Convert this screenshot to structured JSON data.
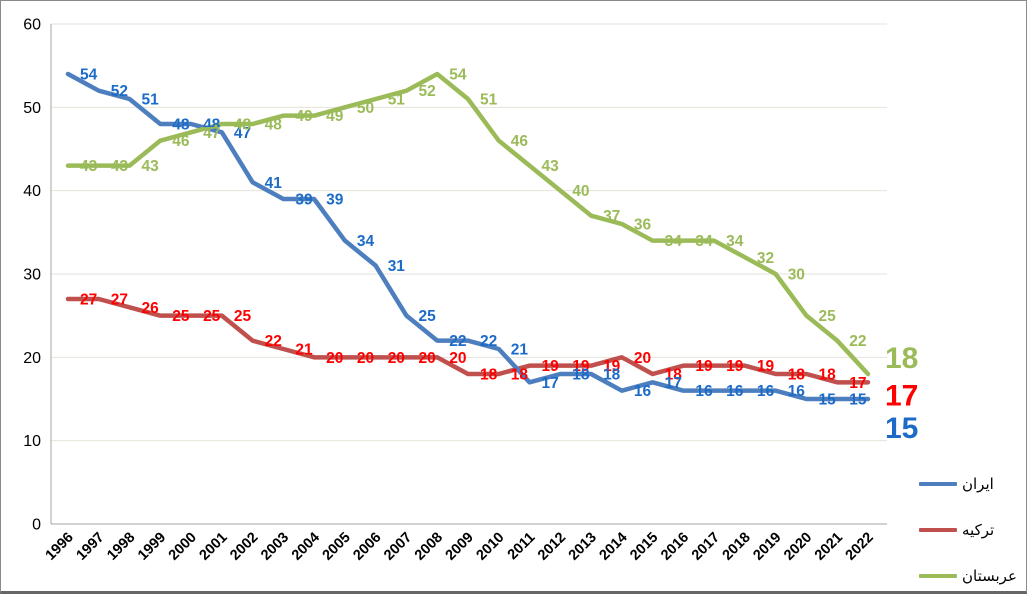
{
  "chart_data": {
    "type": "line",
    "title": "",
    "xlabel": "",
    "ylabel": "",
    "x": [
      1996,
      1997,
      1998,
      1999,
      2000,
      2001,
      2002,
      2003,
      2004,
      2005,
      2006,
      2007,
      2008,
      2009,
      2010,
      2011,
      2012,
      2013,
      2014,
      2015,
      2016,
      2017,
      2018,
      2019,
      2020,
      2021,
      2022
    ],
    "ylim": [
      0,
      60
    ],
    "yticks": [
      0,
      10,
      20,
      30,
      40,
      50,
      60
    ],
    "grid": true,
    "legend_position": "bottom-right",
    "series": [
      {
        "key": "iran",
        "name": "ايران",
        "line_color": "#4D7EBE",
        "label_color": "#1C6BC8",
        "values": [
          54,
          52,
          51,
          48,
          48,
          47,
          41,
          39,
          39,
          34,
          31,
          25,
          22,
          22,
          21,
          17,
          18,
          18,
          16,
          17,
          16,
          16,
          16,
          16,
          15,
          15,
          15
        ],
        "final_value_label": "15"
      },
      {
        "key": "turkiye",
        "name": "تركيه",
        "line_color": "#C0504D",
        "label_color": "#FF0000",
        "values": [
          27,
          27,
          26,
          25,
          25,
          25,
          22,
          21,
          20,
          20,
          20,
          20,
          20,
          18,
          18,
          19,
          19,
          19,
          20,
          18,
          19,
          19,
          19,
          18,
          18,
          17,
          17
        ],
        "final_value_label": "17"
      },
      {
        "key": "arabistan",
        "name": "عربستان",
        "line_color": "#9BBB59",
        "label_color": "#9BBB59",
        "values": [
          43,
          43,
          43,
          46,
          47,
          48,
          48,
          49,
          49,
          50,
          51,
          52,
          54,
          51,
          46,
          43,
          40,
          37,
          36,
          34,
          34,
          34,
          32,
          30,
          25,
          22,
          18
        ],
        "final_value_label": "18"
      }
    ]
  }
}
